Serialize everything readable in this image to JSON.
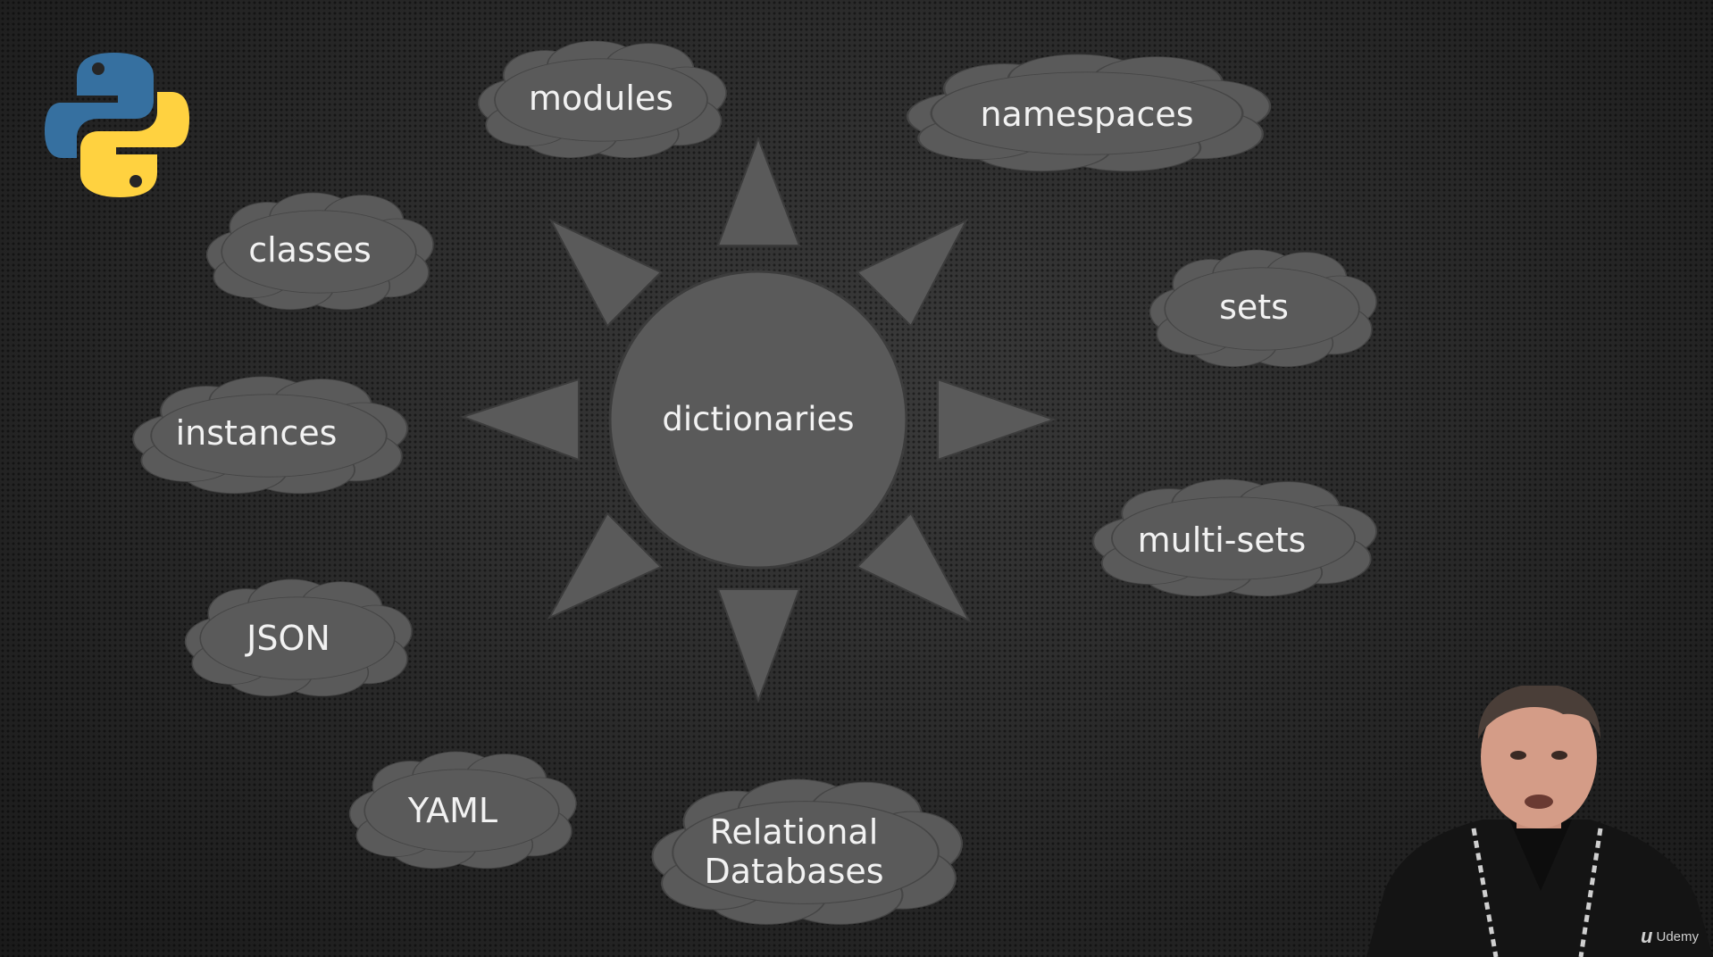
{
  "center": {
    "label": "dictionaries"
  },
  "clouds": [
    {
      "id": "modules",
      "label": "modules"
    },
    {
      "id": "namespaces",
      "label": "namespaces"
    },
    {
      "id": "classes",
      "label": "classes"
    },
    {
      "id": "sets",
      "label": "sets"
    },
    {
      "id": "instances",
      "label": "instances"
    },
    {
      "id": "multi-sets",
      "label": "multi-sets"
    },
    {
      "id": "json",
      "label": "JSON"
    },
    {
      "id": "yaml",
      "label": "YAML"
    },
    {
      "id": "relational-databases",
      "label": "Relational\nDatabases"
    }
  ],
  "branding": {
    "watermark": "Udemy"
  },
  "colors": {
    "shape_fill": "#5a5a5a",
    "shape_stroke": "#3c3c3c",
    "text": "#f2f2f2",
    "python_blue": "#3670a0",
    "python_yellow": "#ffd240"
  },
  "icons": {
    "logo": "python-logo-icon",
    "watermark": "udemy-logo-icon"
  }
}
